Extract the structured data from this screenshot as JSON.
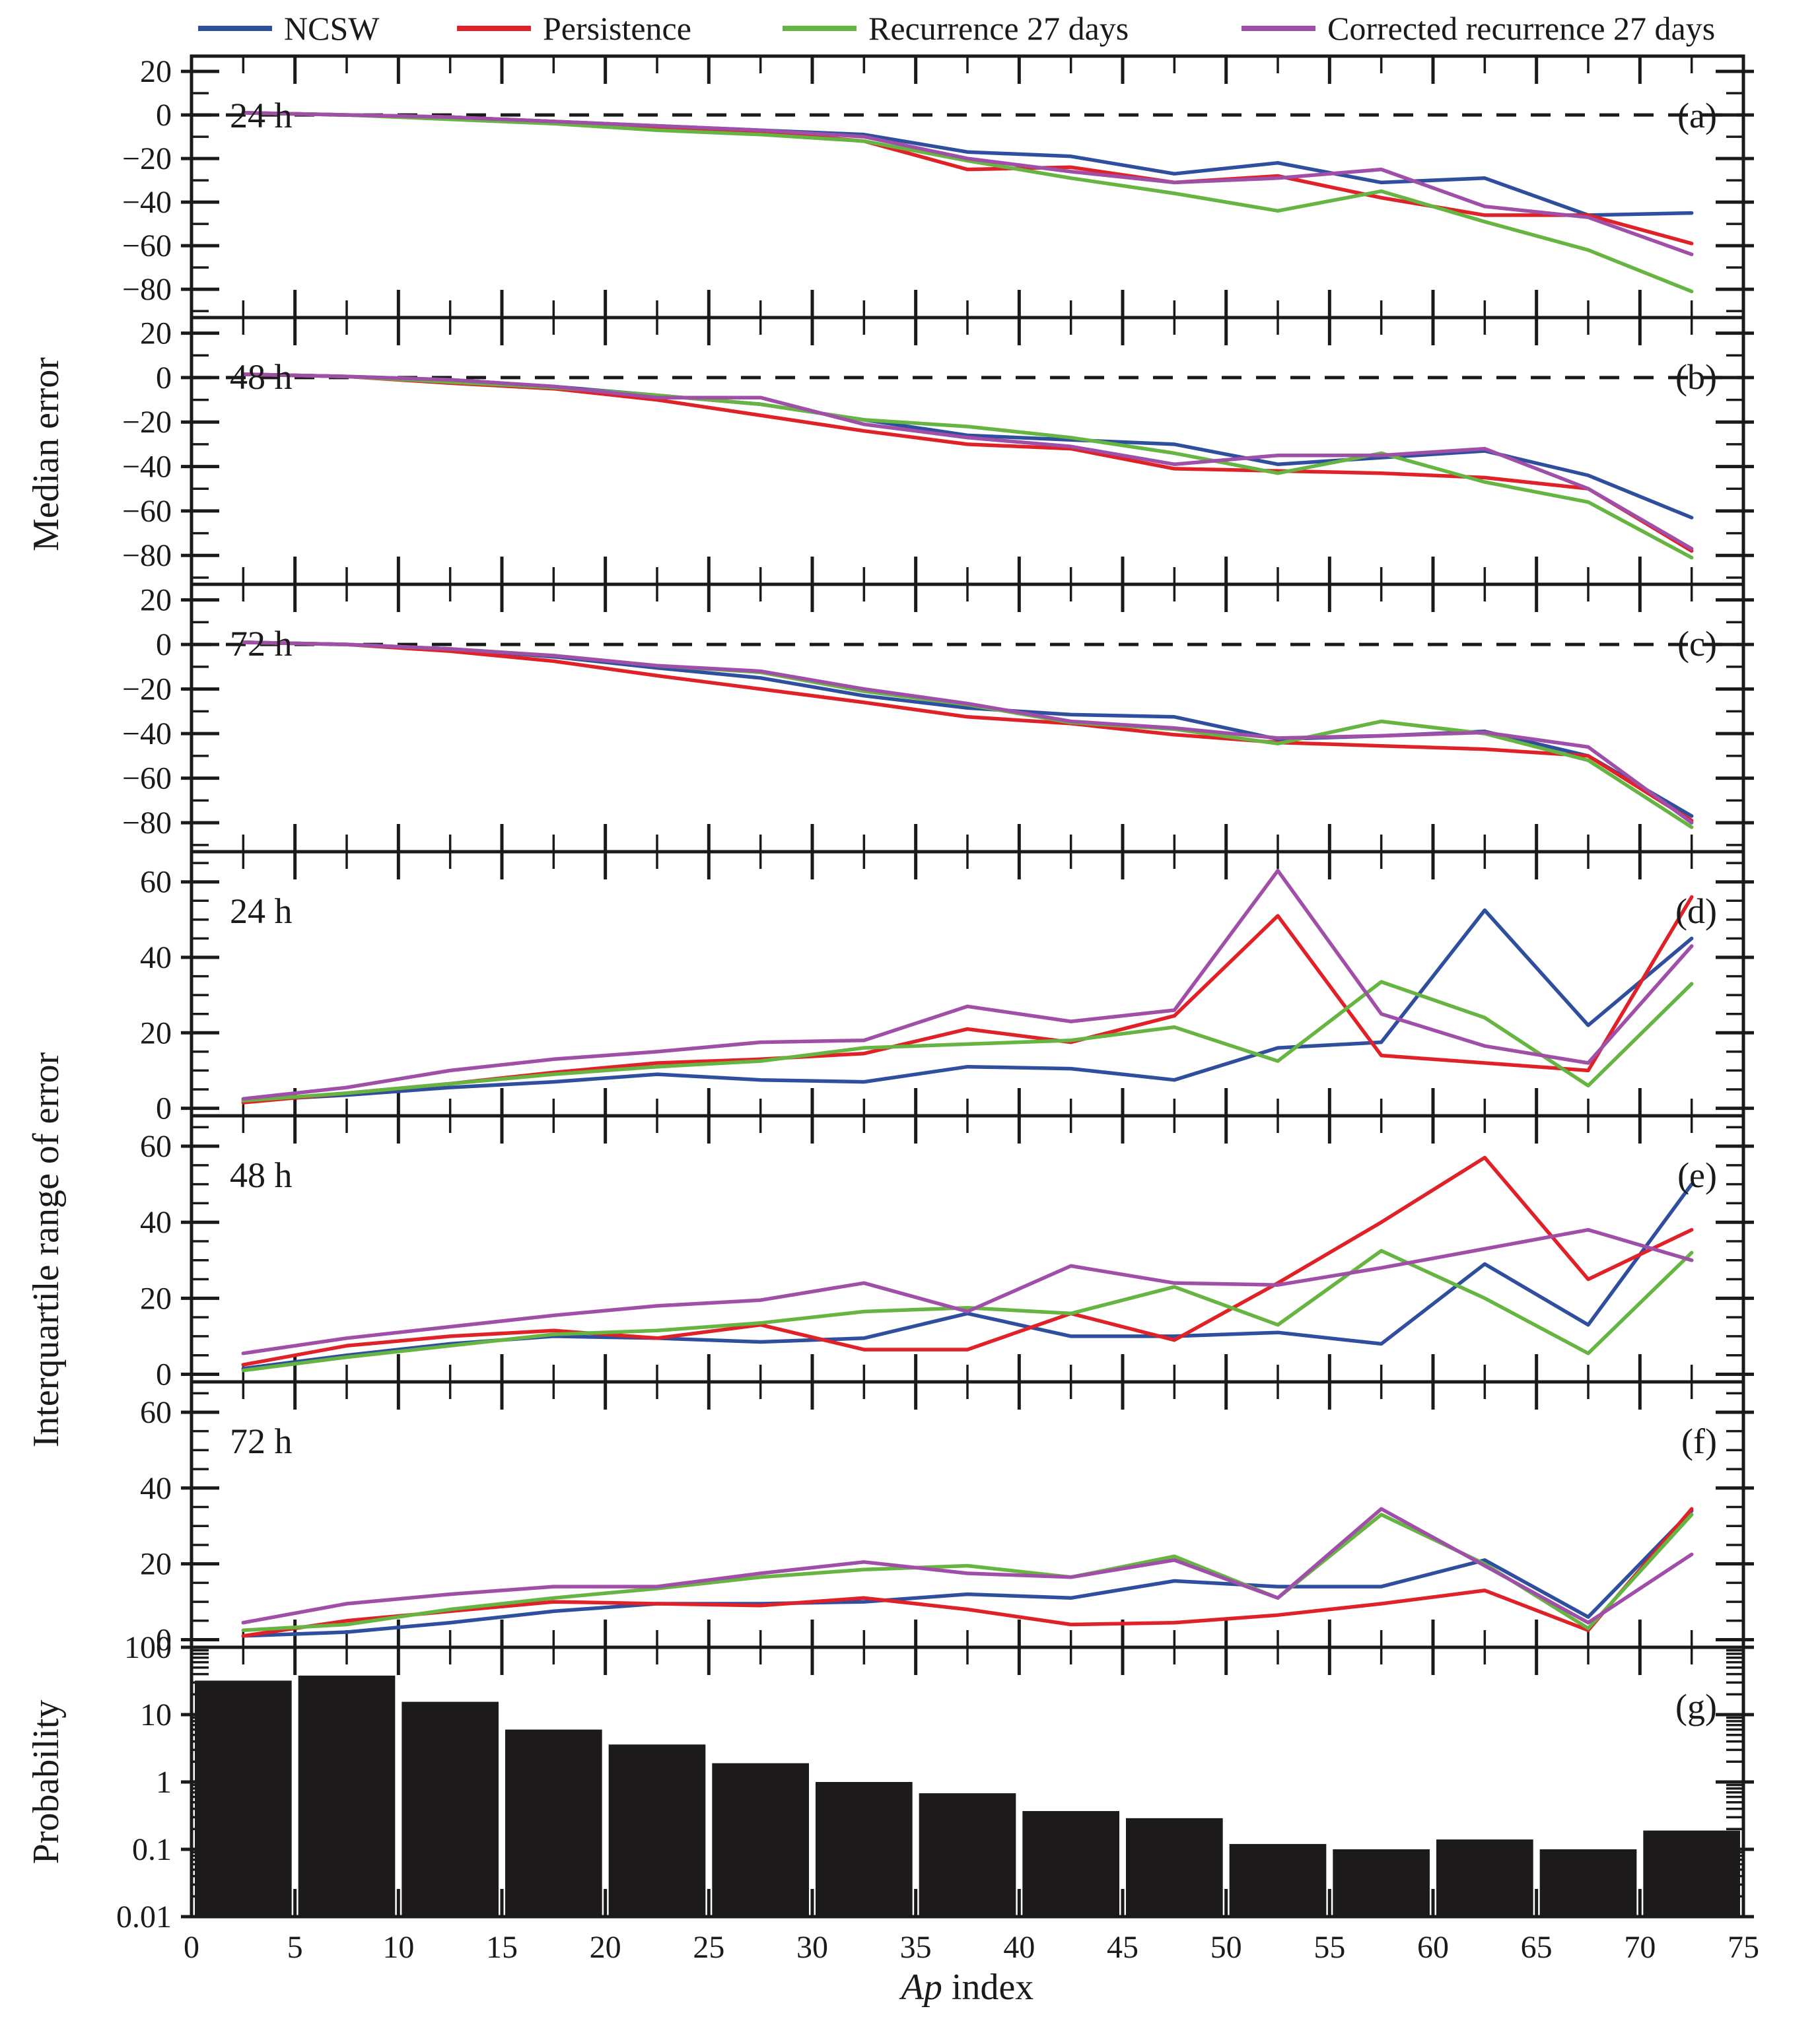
{
  "legend": {
    "items": [
      {
        "label": "NCSW",
        "color": "#2f4f9e"
      },
      {
        "label": "Persistence",
        "color": "#e02128"
      },
      {
        "label": "Recurrence 27 days",
        "color": "#66b441"
      },
      {
        "label": "Corrected recurrence 27 days",
        "color": "#a04fa8"
      }
    ]
  },
  "x_axis": {
    "title_italic": "Ap",
    "title_rest": " index",
    "range": [
      0,
      75
    ],
    "tick_labels": [
      0,
      5,
      10,
      15,
      20,
      25,
      30,
      35,
      40,
      45,
      50,
      55,
      60,
      65,
      70,
      75
    ],
    "minor_step": 2.5,
    "major_step": 5
  },
  "y_axis_titles": [
    {
      "text": "Median error",
      "panels": [
        "a",
        "b",
        "c"
      ]
    },
    {
      "text": "Interquartile range of error",
      "panels": [
        "d",
        "e",
        "f"
      ]
    },
    {
      "text": "Probability",
      "panels": [
        "g"
      ]
    }
  ],
  "chart_data": [
    {
      "id": "a",
      "type": "line",
      "label": "24 h",
      "letter": "(a)",
      "ylabel_group": "Median error",
      "ylim": [
        -93,
        27
      ],
      "ytick_labels": [
        20,
        0,
        -20,
        -40,
        -60,
        -80
      ],
      "ymajor_step": 20,
      "yminor_step": 10,
      "zero_line": true,
      "grid": false,
      "x": [
        2.5,
        7.5,
        12.5,
        17.5,
        22.5,
        27.5,
        32.5,
        37.5,
        42.5,
        47.5,
        52.5,
        57.5,
        62.5,
        67.5,
        72.5
      ],
      "series": [
        {
          "name": "NCSW",
          "color": "#2f4f9e",
          "values": [
            1,
            0,
            -1,
            -3,
            -5,
            -7,
            -9,
            -17,
            -19,
            -27,
            -22,
            -31,
            -29,
            -46,
            -45
          ]
        },
        {
          "name": "Persistence",
          "color": "#e02128",
          "values": [
            1,
            0,
            -1,
            -3,
            -6,
            -8,
            -12,
            -25,
            -24,
            -31,
            -28,
            -38,
            -46,
            -46,
            -59
          ]
        },
        {
          "name": "Recurrence 27 days",
          "color": "#66b441",
          "values": [
            1,
            0,
            -2,
            -4,
            -7,
            -9,
            -12,
            -21,
            -29,
            -36,
            -44,
            -35,
            -49,
            -62,
            -81
          ]
        },
        {
          "name": "Corrected recurrence 27 days",
          "color": "#a04fa8",
          "values": [
            1,
            0,
            -1,
            -3,
            -5,
            -7,
            -10,
            -20,
            -26,
            -31,
            -29,
            -25,
            -42,
            -47,
            -64
          ]
        }
      ]
    },
    {
      "id": "b",
      "type": "line",
      "label": "48 h",
      "letter": "(b)",
      "ylabel_group": "Median error",
      "ylim": [
        -93,
        27
      ],
      "ytick_labels": [
        20,
        0,
        -20,
        -40,
        -60,
        -80
      ],
      "ymajor_step": 20,
      "yminor_step": 10,
      "zero_line": true,
      "grid": false,
      "x": [
        2.5,
        7.5,
        12.5,
        17.5,
        22.5,
        27.5,
        32.5,
        37.5,
        42.5,
        47.5,
        52.5,
        57.5,
        62.5,
        67.5,
        72.5
      ],
      "series": [
        {
          "name": "NCSW",
          "color": "#2f4f9e",
          "values": [
            1.5,
            0.5,
            -1,
            -4,
            -8,
            -12,
            -19,
            -26,
            -28,
            -30,
            -39,
            -36,
            -33,
            -44,
            -63
          ]
        },
        {
          "name": "Persistence",
          "color": "#e02128",
          "values": [
            1.5,
            0.5,
            -2.5,
            -5,
            -10,
            -17,
            -24,
            -30,
            -32,
            -41,
            -42,
            -43,
            -45,
            -50,
            -78
          ]
        },
        {
          "name": "Recurrence 27 days",
          "color": "#66b441",
          "values": [
            1.5,
            0.5,
            -2,
            -4.5,
            -8,
            -12,
            -19,
            -22,
            -27,
            -34,
            -43,
            -34,
            -47,
            -56,
            -81
          ]
        },
        {
          "name": "Corrected recurrence 27 days",
          "color": "#a04fa8",
          "values": [
            1.5,
            0.5,
            -1,
            -4,
            -9,
            -9,
            -21,
            -27,
            -31,
            -39,
            -35,
            -35,
            -32,
            -50,
            -77
          ]
        }
      ]
    },
    {
      "id": "c",
      "type": "line",
      "label": "72 h",
      "letter": "(c)",
      "ylabel_group": "Median error",
      "ylim": [
        -93,
        27
      ],
      "ytick_labels": [
        20,
        0,
        -20,
        -40,
        -60,
        -80
      ],
      "ymajor_step": 20,
      "yminor_step": 10,
      "zero_line": true,
      "grid": false,
      "x": [
        2.5,
        7.5,
        12.5,
        17.5,
        22.5,
        27.5,
        32.5,
        37.5,
        42.5,
        47.5,
        52.5,
        57.5,
        62.5,
        67.5,
        72.5
      ],
      "series": [
        {
          "name": "NCSW",
          "color": "#2f4f9e",
          "values": [
            1,
            0,
            -2,
            -5.5,
            -10.5,
            -15,
            -23,
            -28.5,
            -31.5,
            -32.5,
            -42.5,
            -41,
            -39,
            -50,
            -77
          ]
        },
        {
          "name": "Persistence",
          "color": "#e02128",
          "values": [
            1,
            0,
            -3,
            -7.5,
            -14,
            -20,
            -26,
            -32.5,
            -35.5,
            -40.5,
            -44,
            -45.5,
            -47,
            -50,
            -79
          ]
        },
        {
          "name": "Recurrence 27 days",
          "color": "#66b441",
          "values": [
            1,
            0,
            -2,
            -5,
            -9.5,
            -12.5,
            -21,
            -27,
            -35,
            -38,
            -44.5,
            -34.5,
            -40,
            -52,
            -82
          ]
        },
        {
          "name": "Corrected recurrence 27 days",
          "color": "#a04fa8",
          "values": [
            1,
            0,
            -2,
            -5,
            -9.5,
            -12,
            -20,
            -26.5,
            -34.5,
            -37.5,
            -42,
            -41,
            -39.5,
            -46,
            -80
          ]
        }
      ]
    },
    {
      "id": "d",
      "type": "line",
      "label": "24 h",
      "letter": "(d)",
      "ylabel_group": "Interquartile range of error",
      "ylim": [
        -2,
        68
      ],
      "ytick_labels": [
        60,
        40,
        20,
        0
      ],
      "ymajor_step": 20,
      "yminor_step": 5,
      "zero_line": false,
      "grid": false,
      "x": [
        2.5,
        7.5,
        12.5,
        17.5,
        22.5,
        27.5,
        32.5,
        37.5,
        42.5,
        47.5,
        52.5,
        57.5,
        62.5,
        67.5,
        72.5
      ],
      "series": [
        {
          "name": "NCSW",
          "color": "#2f4f9e",
          "values": [
            2,
            3.5,
            5.5,
            7,
            9,
            7.5,
            7,
            11,
            10.5,
            7.5,
            16,
            17.5,
            52.5,
            22,
            45
          ]
        },
        {
          "name": "Persistence",
          "color": "#e02128",
          "values": [
            1.5,
            4,
            6.5,
            9.5,
            12,
            13,
            14.5,
            21,
            17.5,
            24.5,
            51,
            14,
            12,
            10,
            56
          ]
        },
        {
          "name": "Recurrence 27 days",
          "color": "#66b441",
          "values": [
            2,
            4,
            6.5,
            9,
            11,
            12.5,
            16,
            17,
            18,
            21.5,
            12.5,
            33.5,
            24,
            6,
            33
          ]
        },
        {
          "name": "Corrected recurrence 27 days",
          "color": "#a04fa8",
          "values": [
            2.5,
            5.5,
            10,
            13,
            15,
            17.5,
            18,
            27,
            23,
            26,
            63,
            25,
            16.5,
            12,
            43
          ]
        }
      ]
    },
    {
      "id": "e",
      "type": "line",
      "label": "48 h",
      "letter": "(e)",
      "ylabel_group": "Interquartile range of error",
      "ylim": [
        -2,
        68
      ],
      "ytick_labels": [
        60,
        40,
        20,
        0
      ],
      "ymajor_step": 20,
      "yminor_step": 5,
      "zero_line": false,
      "grid": false,
      "x": [
        2.5,
        7.5,
        12.5,
        17.5,
        22.5,
        27.5,
        32.5,
        37.5,
        42.5,
        47.5,
        52.5,
        57.5,
        62.5,
        67.5,
        72.5
      ],
      "series": [
        {
          "name": "NCSW",
          "color": "#2f4f9e",
          "values": [
            1.5,
            5,
            8,
            10,
            9.5,
            8.5,
            9.5,
            16,
            10,
            10,
            11,
            8,
            29,
            13,
            50
          ]
        },
        {
          "name": "Persistence",
          "color": "#e02128",
          "values": [
            2.5,
            7.5,
            10,
            11.5,
            9.5,
            13,
            6.5,
            6.5,
            16,
            9,
            24,
            40,
            57,
            25,
            38
          ]
        },
        {
          "name": "Recurrence 27 days",
          "color": "#66b441",
          "values": [
            1,
            4.5,
            7.5,
            10.5,
            11.5,
            13.5,
            16.5,
            17.5,
            16,
            23,
            13,
            32.5,
            20,
            5.5,
            32
          ]
        },
        {
          "name": "Corrected recurrence 27 days",
          "color": "#a04fa8",
          "values": [
            5.5,
            9.5,
            12.5,
            15.5,
            18,
            19.5,
            24,
            16.5,
            28.5,
            24,
            23.5,
            28,
            33,
            38,
            30
          ]
        }
      ]
    },
    {
      "id": "f",
      "type": "line",
      "label": "72 h",
      "letter": "(f)",
      "ylabel_group": "Interquartile range of error",
      "ylim": [
        -2,
        68
      ],
      "ytick_labels": [
        60,
        40,
        20,
        0
      ],
      "ymajor_step": 20,
      "yminor_step": 5,
      "zero_line": false,
      "grid": false,
      "x": [
        2.5,
        7.5,
        12.5,
        17.5,
        22.5,
        27.5,
        32.5,
        37.5,
        42.5,
        47.5,
        52.5,
        57.5,
        62.5,
        67.5,
        72.5
      ],
      "series": [
        {
          "name": "NCSW",
          "color": "#2f4f9e",
          "values": [
            1,
            2,
            4.5,
            7.5,
            9.5,
            9.5,
            10,
            12,
            11,
            15.5,
            14,
            14,
            21,
            6,
            34
          ]
        },
        {
          "name": "Persistence",
          "color": "#e02128",
          "values": [
            1,
            5,
            7.5,
            10,
            9.5,
            9,
            11,
            8,
            4,
            4.5,
            6.5,
            9.5,
            13,
            2.5,
            34.5
          ]
        },
        {
          "name": "Recurrence 27 days",
          "color": "#66b441",
          "values": [
            2.5,
            4,
            8,
            11,
            13.5,
            16.5,
            18.5,
            19.5,
            16.5,
            22,
            11,
            33,
            20,
            3,
            33
          ]
        },
        {
          "name": "Corrected recurrence 27 days",
          "color": "#a04fa8",
          "values": [
            4.5,
            9.5,
            12,
            14,
            14,
            17.5,
            20.5,
            17.5,
            16.5,
            21,
            11,
            34.5,
            19.5,
            4.5,
            22.5
          ]
        }
      ]
    },
    {
      "id": "g",
      "type": "bar_log",
      "label": "",
      "letter": "(g)",
      "ylabel_group": "Probability",
      "ylim_exp": [
        -2,
        2
      ],
      "ytick_labels": [
        "100",
        "10",
        "1",
        "0.1",
        "0.01"
      ],
      "bin_edges": [
        0,
        5,
        10,
        15,
        20,
        25,
        30,
        35,
        40,
        45,
        50,
        55,
        60,
        65,
        70,
        75
      ],
      "values": [
        32,
        38,
        15.5,
        6,
        3.6,
        1.9,
        1.0,
        0.68,
        0.37,
        0.29,
        0.12,
        0.1,
        0.14,
        0.1,
        0.19
      ],
      "color": "#1c1a1a"
    }
  ]
}
